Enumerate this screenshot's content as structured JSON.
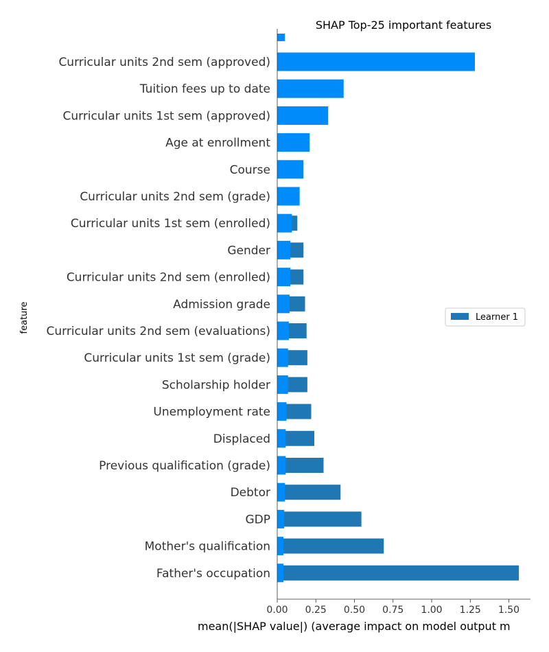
{
  "chart_data": {
    "type": "bar",
    "orientation": "horizontal",
    "title": "SHAP Top-25 important features",
    "xlabel": "mean(|SHAP value|) (average impact on model output m",
    "ylabel": "feature",
    "xlim": [
      0,
      1.64
    ],
    "xticks": [
      "0.00",
      "0.25",
      "0.50",
      "0.75",
      "1.00",
      "1.25",
      "1.50"
    ],
    "legend": {
      "position": "right",
      "entries": [
        "Learner 1"
      ]
    },
    "grid": false,
    "colors": {
      "shap_bar": "#008bfb",
      "learner_bar": "#1f77b4"
    },
    "top_partial_bar": {
      "shap": 0.05
    },
    "categories": [
      "Curricular units 2nd sem (approved)",
      "Tuition fees up to date",
      "Curricular units 1st sem (approved)",
      "Age at enrollment",
      "Course",
      "Curricular units 2nd sem (grade)",
      "Curricular units 1st sem (enrolled)",
      "Gender",
      "Curricular units 2nd sem (enrolled)",
      "Admission grade",
      "Curricular units 2nd sem (evaluations)",
      "Curricular units 1st sem (grade)",
      "Scholarship holder",
      "Unemployment rate",
      "Displaced",
      "Previous qualification (grade)",
      "Debtor",
      "GDP",
      "Mother's qualification",
      "Father's occupation"
    ],
    "series": [
      {
        "key": "shap",
        "values": [
          1.28,
          0.43,
          0.33,
          0.21,
          0.17,
          0.145,
          0.095,
          0.085,
          0.085,
          0.08,
          0.075,
          0.07,
          0.07,
          0.06,
          0.055,
          0.055,
          0.05,
          0.045,
          0.04,
          0.04
        ]
      },
      {
        "name": "Learner 1",
        "key": "learner",
        "values": [
          null,
          null,
          null,
          null,
          null,
          null,
          0.13,
          0.17,
          0.17,
          0.18,
          0.19,
          0.195,
          0.195,
          0.22,
          0.24,
          0.3,
          0.41,
          0.545,
          0.69,
          1.565
        ]
      }
    ]
  }
}
